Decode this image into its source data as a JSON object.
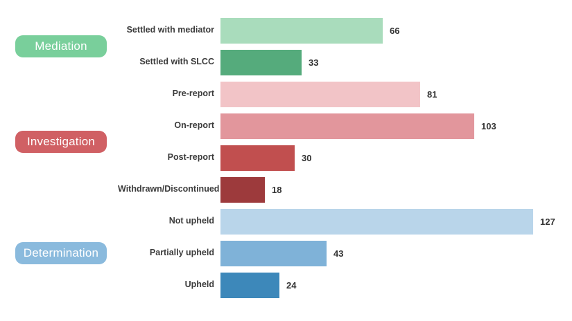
{
  "background_color": "#ffffff",
  "text_color": "#3b3b3b",
  "chart_data": {
    "type": "bar",
    "orientation": "horizontal",
    "title": "",
    "xlabel": "",
    "ylabel": "",
    "xlim": [
      0,
      140
    ],
    "grid": false,
    "legend_position": "none",
    "value_labels": true,
    "groups": [
      {
        "label": "Mediation",
        "pill_color": "#79cf9b",
        "items": [
          {
            "category": "Settled with mediator",
            "value": 66,
            "color": "#a9dcbc"
          },
          {
            "category": "Settled with SLCC",
            "value": 33,
            "color": "#55ab7c"
          }
        ]
      },
      {
        "label": "Investigation",
        "pill_color": "#d06064",
        "items": [
          {
            "category": "Pre-report",
            "value": 81,
            "color": "#f2c4c7"
          },
          {
            "category": "On-report",
            "value": 103,
            "color": "#e2969c"
          },
          {
            "category": "Post-report",
            "value": 30,
            "color": "#c14f4f"
          },
          {
            "category": "Withdrawn/Discontinued",
            "value": 18,
            "color": "#9d3a3c"
          }
        ]
      },
      {
        "label": "Determination",
        "pill_color": "#8abadd",
        "items": [
          {
            "category": "Not upheld",
            "value": 127,
            "color": "#b9d5ea"
          },
          {
            "category": "Partially upheld",
            "value": 43,
            "color": "#7fb2d8"
          },
          {
            "category": "Upheld",
            "value": 24,
            "color": "#3d88ba"
          }
        ]
      }
    ]
  }
}
